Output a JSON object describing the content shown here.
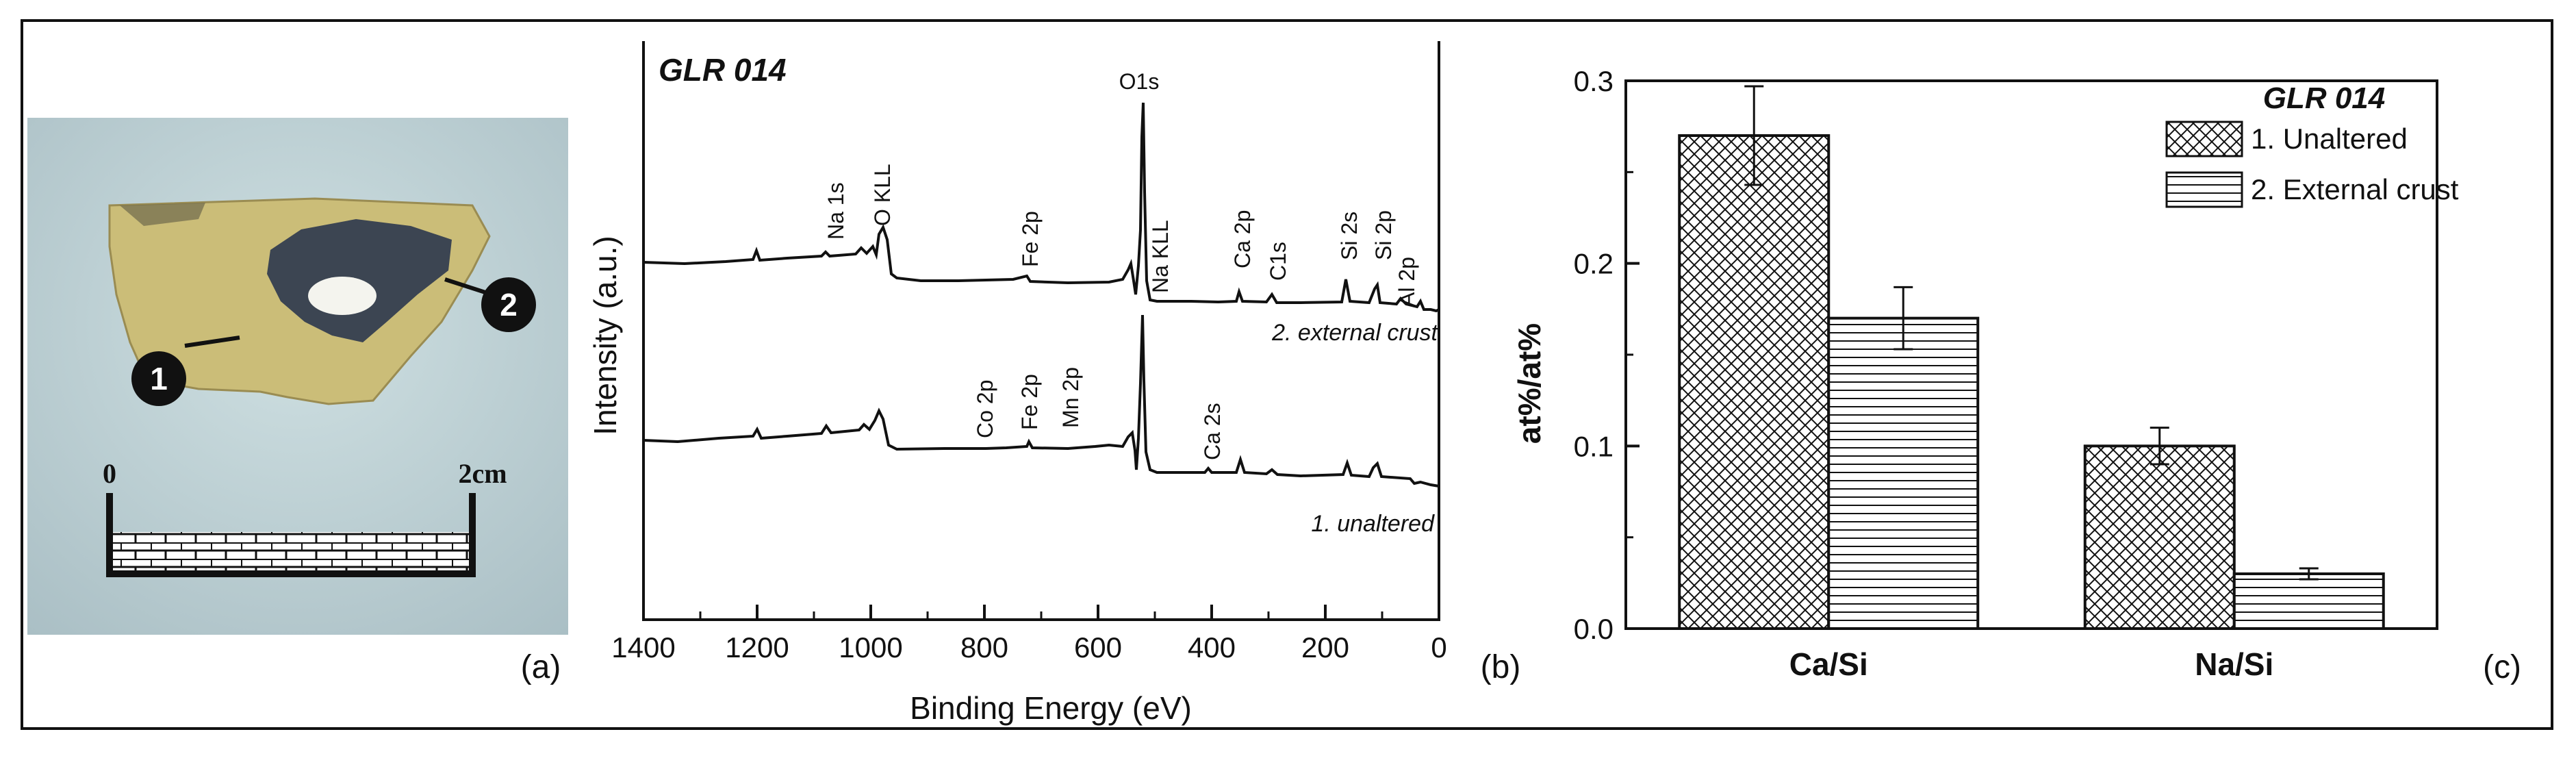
{
  "panel_a": {
    "label": "(a)",
    "markers": [
      "1",
      "2"
    ],
    "scale": {
      "start": "0",
      "end": "2cm"
    }
  },
  "panel_b": {
    "label": "(b)",
    "title": "GLR 014",
    "xlabel": "Binding Energy (eV)",
    "ylabel": "Intensity (a.u.)",
    "ticks": [
      "1400",
      "1200",
      "1000",
      "800",
      "600",
      "400",
      "200",
      "0"
    ],
    "spectra": [
      {
        "name": "2. external crust",
        "peaks": [
          "Na 1s",
          "O KLL",
          "Fe 2p",
          "O1s",
          "Na KLL",
          "Ca 2p",
          "C1s",
          "Si 2s",
          "Si 2p",
          "Al 2p"
        ]
      },
      {
        "name": "1. unaltered",
        "peaks": [
          "Co 2p",
          "Fe 2p",
          "Mn 2p",
          "Ca 2s"
        ]
      }
    ]
  },
  "chart_data": {
    "type": "bar",
    "label": "(c)",
    "title": "GLR 014",
    "categories": [
      "Ca/Si",
      "Na/Si"
    ],
    "series": [
      {
        "name": "1. Unaltered",
        "values": [
          0.27,
          0.1
        ],
        "errors": [
          0.027,
          0.01
        ],
        "pattern": "crosshatch"
      },
      {
        "name": "2. External crust",
        "values": [
          0.17,
          0.03
        ],
        "errors": [
          0.017,
          0.003
        ],
        "pattern": "horizontal"
      }
    ],
    "xlabel": "",
    "ylabel": "at%/at%",
    "ylim": [
      0.0,
      0.3
    ],
    "yticks": [
      "0.0",
      "0.1",
      "0.2",
      "0.3"
    ],
    "legend": "top-right",
    "grid": false
  }
}
